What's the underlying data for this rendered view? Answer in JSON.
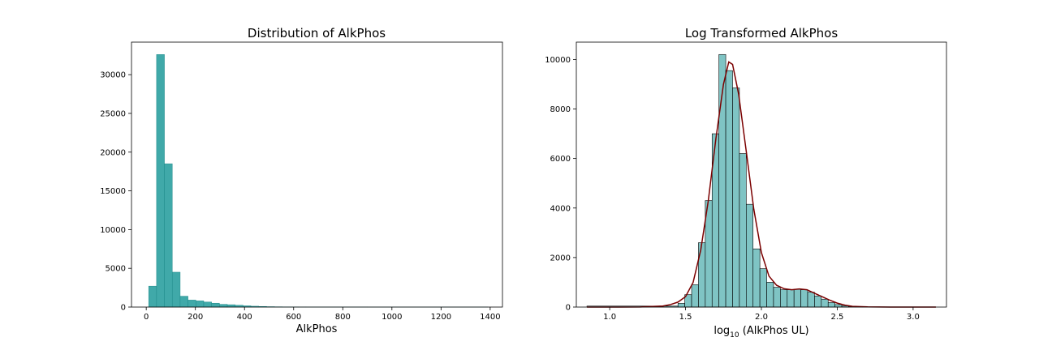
{
  "chart_data": [
    {
      "type": "bar",
      "title": "Distribution of AlkPhos",
      "xlabel": "AlkPhos",
      "ylabel": "",
      "xlim": [
        -60,
        1450
      ],
      "ylim": [
        0,
        34200
      ],
      "xticks": [
        0,
        200,
        400,
        600,
        800,
        1000,
        1200,
        1400
      ],
      "yticks": [
        0,
        5000,
        10000,
        15000,
        20000,
        25000,
        30000
      ],
      "bar_color": "#40A9A9",
      "edge_color": "#1f8a8a",
      "bins": [
        {
          "x0": 10,
          "x1": 42,
          "count": 2700
        },
        {
          "x0": 42,
          "x1": 74,
          "count": 32600
        },
        {
          "x0": 74,
          "x1": 106,
          "count": 18500
        },
        {
          "x0": 106,
          "x1": 138,
          "count": 4500
        },
        {
          "x0": 138,
          "x1": 170,
          "count": 1400
        },
        {
          "x0": 170,
          "x1": 202,
          "count": 900
        },
        {
          "x0": 202,
          "x1": 234,
          "count": 800
        },
        {
          "x0": 234,
          "x1": 266,
          "count": 650
        },
        {
          "x0": 266,
          "x1": 298,
          "count": 500
        },
        {
          "x0": 298,
          "x1": 330,
          "count": 350
        },
        {
          "x0": 330,
          "x1": 362,
          "count": 300
        },
        {
          "x0": 362,
          "x1": 394,
          "count": 230
        },
        {
          "x0": 394,
          "x1": 426,
          "count": 160
        },
        {
          "x0": 426,
          "x1": 458,
          "count": 110
        },
        {
          "x0": 458,
          "x1": 490,
          "count": 80
        },
        {
          "x0": 490,
          "x1": 522,
          "count": 50
        },
        {
          "x0": 522,
          "x1": 554,
          "count": 35
        },
        {
          "x0": 554,
          "x1": 586,
          "count": 25
        },
        {
          "x0": 586,
          "x1": 618,
          "count": 18
        },
        {
          "x0": 618,
          "x1": 650,
          "count": 12
        },
        {
          "x0": 650,
          "x1": 900,
          "count": 8
        },
        {
          "x0": 900,
          "x1": 1390,
          "count": 3
        }
      ]
    },
    {
      "type": "bar",
      "title": "Log Transformed AlkPhos",
      "xlabel": "log10 (AlkPhos UL)",
      "xlabel_main": "log",
      "xlabel_sub": "10",
      "xlabel_rest": " (AlkPhos UL)",
      "ylabel": "",
      "xlim": [
        0.78,
        3.22
      ],
      "ylim": [
        0,
        10700
      ],
      "xticks": [
        "1.0",
        "1.5",
        "2.0",
        "2.5",
        "3.0"
      ],
      "yticks": [
        0,
        2000,
        4000,
        6000,
        8000,
        10000
      ],
      "bar_color": "#7fc4c4",
      "edge_color": "#000000",
      "kde_color": "#7b0000",
      "bins": [
        {
          "x0": 0.85,
          "x1": 1.45,
          "count": 40
        },
        {
          "x0": 1.45,
          "x1": 1.495,
          "count": 150
        },
        {
          "x0": 1.495,
          "x1": 1.54,
          "count": 500
        },
        {
          "x0": 1.54,
          "x1": 1.585,
          "count": 900
        },
        {
          "x0": 1.585,
          "x1": 1.63,
          "count": 2600
        },
        {
          "x0": 1.63,
          "x1": 1.675,
          "count": 4300
        },
        {
          "x0": 1.675,
          "x1": 1.72,
          "count": 7000
        },
        {
          "x0": 1.72,
          "x1": 1.765,
          "count": 10200
        },
        {
          "x0": 1.765,
          "x1": 1.81,
          "count": 9550
        },
        {
          "x0": 1.81,
          "x1": 1.855,
          "count": 8850
        },
        {
          "x0": 1.855,
          "x1": 1.9,
          "count": 6200
        },
        {
          "x0": 1.9,
          "x1": 1.945,
          "count": 4150
        },
        {
          "x0": 1.945,
          "x1": 1.99,
          "count": 2350
        },
        {
          "x0": 1.99,
          "x1": 2.035,
          "count": 1550
        },
        {
          "x0": 2.035,
          "x1": 2.08,
          "count": 1000
        },
        {
          "x0": 2.08,
          "x1": 2.125,
          "count": 800
        },
        {
          "x0": 2.125,
          "x1": 2.17,
          "count": 700
        },
        {
          "x0": 2.17,
          "x1": 2.215,
          "count": 700
        },
        {
          "x0": 2.215,
          "x1": 2.26,
          "count": 720
        },
        {
          "x0": 2.26,
          "x1": 2.305,
          "count": 700
        },
        {
          "x0": 2.305,
          "x1": 2.35,
          "count": 600
        },
        {
          "x0": 2.35,
          "x1": 2.395,
          "count": 450
        },
        {
          "x0": 2.395,
          "x1": 2.44,
          "count": 320
        },
        {
          "x0": 2.44,
          "x1": 2.485,
          "count": 180
        },
        {
          "x0": 2.485,
          "x1": 2.53,
          "count": 100
        },
        {
          "x0": 2.53,
          "x1": 2.575,
          "count": 50
        },
        {
          "x0": 2.575,
          "x1": 2.62,
          "count": 30
        },
        {
          "x0": 2.62,
          "x1": 2.665,
          "count": 15
        },
        {
          "x0": 2.665,
          "x1": 2.71,
          "count": 8
        }
      ],
      "kde_points": [
        [
          0.85,
          0
        ],
        [
          1.0,
          0
        ],
        [
          1.2,
          5
        ],
        [
          1.35,
          40
        ],
        [
          1.4,
          100
        ],
        [
          1.45,
          200
        ],
        [
          1.5,
          420
        ],
        [
          1.55,
          1000
        ],
        [
          1.6,
          2300
        ],
        [
          1.65,
          4300
        ],
        [
          1.7,
          6800
        ],
        [
          1.75,
          9000
        ],
        [
          1.785,
          9900
        ],
        [
          1.81,
          9800
        ],
        [
          1.85,
          8600
        ],
        [
          1.9,
          6300
        ],
        [
          1.95,
          3950
        ],
        [
          2.0,
          2200
        ],
        [
          2.05,
          1250
        ],
        [
          2.1,
          880
        ],
        [
          2.15,
          740
        ],
        [
          2.2,
          700
        ],
        [
          2.25,
          730
        ],
        [
          2.3,
          700
        ],
        [
          2.35,
          560
        ],
        [
          2.4,
          420
        ],
        [
          2.45,
          280
        ],
        [
          2.5,
          160
        ],
        [
          2.55,
          80
        ],
        [
          2.6,
          30
        ],
        [
          2.7,
          10
        ],
        [
          2.85,
          2
        ],
        [
          3.0,
          0
        ],
        [
          3.15,
          0
        ]
      ]
    }
  ]
}
